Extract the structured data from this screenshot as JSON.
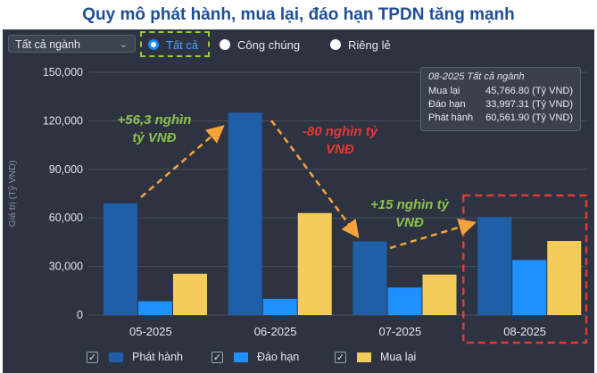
{
  "title": "Quy mô phát hành, mua lại, đáo hạn TPDN tăng mạnh",
  "controls": {
    "industry_select": "Tất cả ngành",
    "radio_options": [
      {
        "label": "Tất cả",
        "selected": true
      },
      {
        "label": "Công chúng",
        "selected": false
      },
      {
        "label": "Riêng lẻ",
        "selected": false
      }
    ]
  },
  "tooltip": {
    "title": "08-2025 Tất cả ngành",
    "rows": [
      {
        "label": "Mua lại",
        "value": "45,766.80 (Tỷ VND)"
      },
      {
        "label": "Đáo hạn",
        "value": "33,997.31 (Tỷ VND)"
      },
      {
        "label": "Phát hành",
        "value": "60,561.90 (Tỷ VND)"
      }
    ]
  },
  "annotations": [
    {
      "text": "+56,3 nghìn\ntỷ VNĐ",
      "color": "#8bc34a"
    },
    {
      "text": "-80 nghìn tỷ\nVNĐ",
      "color": "#e53935"
    },
    {
      "text": "+15 nghìn tỷ\nVNĐ",
      "color": "#8bc34a"
    }
  ],
  "colors": {
    "phat_hanh": "#1f5fa8",
    "dao_han": "#1e90ff",
    "mua_lai": "#f5cc5c",
    "arrow": "#f5a33a",
    "highlight": "#e53935"
  },
  "chart_data": {
    "type": "bar",
    "title": "Quy mô phát hành, mua lại, đáo hạn TPDN tăng mạnh",
    "ylabel": "Giá trị (Tỷ VND)",
    "xlabel": "",
    "categories": [
      "05-2025",
      "06-2025",
      "07-2025",
      "08-2025"
    ],
    "ylim": [
      0,
      150000
    ],
    "yticks": [
      0,
      30000,
      60000,
      90000,
      120000,
      150000
    ],
    "ytick_labels": [
      "0",
      "30,000",
      "60,000",
      "90,000",
      "120,000",
      "150,000"
    ],
    "grid": true,
    "legend": "bottom",
    "series": [
      {
        "name": "Phát hành",
        "values": [
          69000,
          125000,
          45500,
          60561.9
        ]
      },
      {
        "name": "Đáo hạn",
        "values": [
          8500,
          10000,
          17000,
          33997.31
        ]
      },
      {
        "name": "Mua lại",
        "values": [
          25500,
          63000,
          25000,
          45766.8
        ]
      }
    ]
  }
}
